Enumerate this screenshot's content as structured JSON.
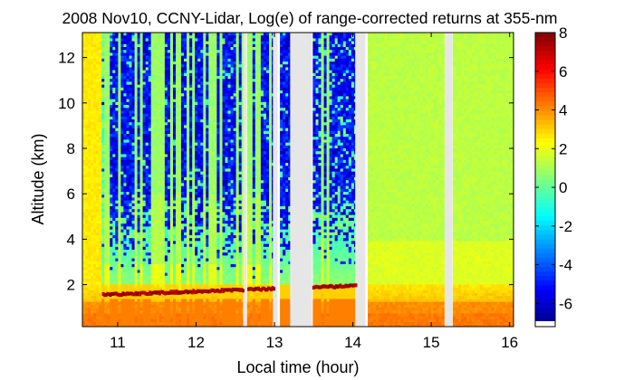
{
  "chart_data": {
    "type": "heatmap",
    "title": "2008 Nov10, CCNY-Lidar, Log(e) of range-corrected returns at 355-nm",
    "xlabel": "Local time (hour)",
    "ylabel": "Altitude (km)",
    "xlim": [
      10.55,
      16.05
    ],
    "ylim": [
      0.15,
      13.1
    ],
    "x_ticks": [
      11,
      12,
      13,
      14,
      15,
      16
    ],
    "x_tick_labels": [
      "11",
      "12",
      "13",
      "14",
      "15",
      "16"
    ],
    "y_ticks": [
      2,
      4,
      6,
      8,
      10,
      12
    ],
    "y_tick_labels": [
      "2",
      "4",
      "6",
      "8",
      "10",
      "12"
    ],
    "colorbar": {
      "min": -7.2,
      "max": 8,
      "ticks": [
        8,
        6,
        4,
        2,
        0,
        -2,
        -4,
        -6
      ],
      "tick_labels": [
        "8",
        "6",
        "4",
        "2",
        "0",
        "-2",
        "-4",
        "-6"
      ]
    },
    "colors": {
      "no_data": "#e6e6e6",
      "colormap": "jet"
    },
    "no_data_intervals_hour": [
      [
        12.6,
        12.64
      ],
      [
        12.98,
        13.04
      ],
      [
        13.2,
        13.48
      ],
      [
        14.03,
        14.16
      ],
      [
        15.17,
        15.27
      ]
    ],
    "cloud_layer": {
      "start_hour": 10.8,
      "end_hour": 14.03,
      "altitude_start_km": 1.55,
      "altitude_end_km": 1.95
    },
    "boundary_layer_top_km": 2.1,
    "grid": false
  }
}
